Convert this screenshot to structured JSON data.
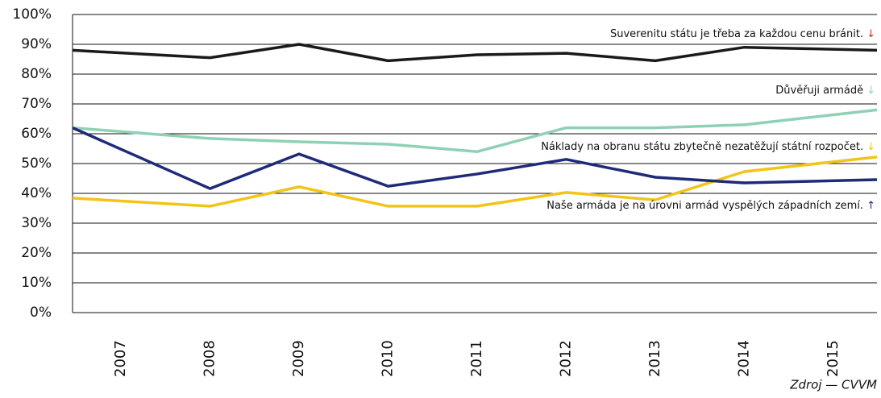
{
  "chart_data": {
    "type": "line",
    "categories": [
      "2007",
      "2008",
      "2009",
      "2010",
      "2011",
      "2012",
      "2013",
      "2014",
      "2015"
    ],
    "series": [
      {
        "name": "Suverenitu státu je třeba za každou cenu bránit.",
        "arrow": "↓",
        "arrow_color": "#d7262a",
        "color": "#1a1a1a",
        "values": [
          88,
          85.5,
          90,
          84.5,
          86.5,
          87,
          84.5,
          89,
          88
        ]
      },
      {
        "name": "Důvěřuji armádě",
        "arrow": "↓",
        "arrow_color": "#8fd1b5",
        "color": "#8fd1b5",
        "values": [
          62,
          58.4,
          57.3,
          56.5,
          54,
          62,
          62,
          63,
          68
        ]
      },
      {
        "name": "Náklady na obranu státu zbytečně nezatěžují státní rozpočet.",
        "arrow": "↓",
        "arrow_color": "#f2c417",
        "color": "#f2c417",
        "values": [
          38.4,
          35.7,
          42.2,
          35.7,
          35.7,
          40.3,
          37.8,
          47.3,
          52.2
        ]
      },
      {
        "name": "Naše armáda je na úrovni armád vyspělých západních zemí.",
        "arrow": "↑",
        "arrow_color": "#1f2a78",
        "color": "#1f2a78",
        "values": [
          62,
          41.6,
          53.2,
          42.4,
          46.5,
          51.4,
          45.4,
          43.5,
          44.6
        ]
      }
    ],
    "ylim": [
      0,
      100
    ],
    "yticks": [
      {
        "value": 0,
        "label": "0%"
      },
      {
        "value": 10,
        "label": "10%"
      },
      {
        "value": 20,
        "label": "20%"
      },
      {
        "value": 30,
        "label": "30%"
      },
      {
        "value": 40,
        "label": "40%"
      },
      {
        "value": 50,
        "label": "50%"
      },
      {
        "value": 60,
        "label": "60%"
      },
      {
        "value": 70,
        "label": "70%"
      },
      {
        "value": 80,
        "label": "80%"
      },
      {
        "value": 90,
        "label": "90%"
      },
      {
        "value": 100,
        "label": "100%"
      }
    ],
    "grid": true,
    "source": "Zdroj — CVVM"
  }
}
